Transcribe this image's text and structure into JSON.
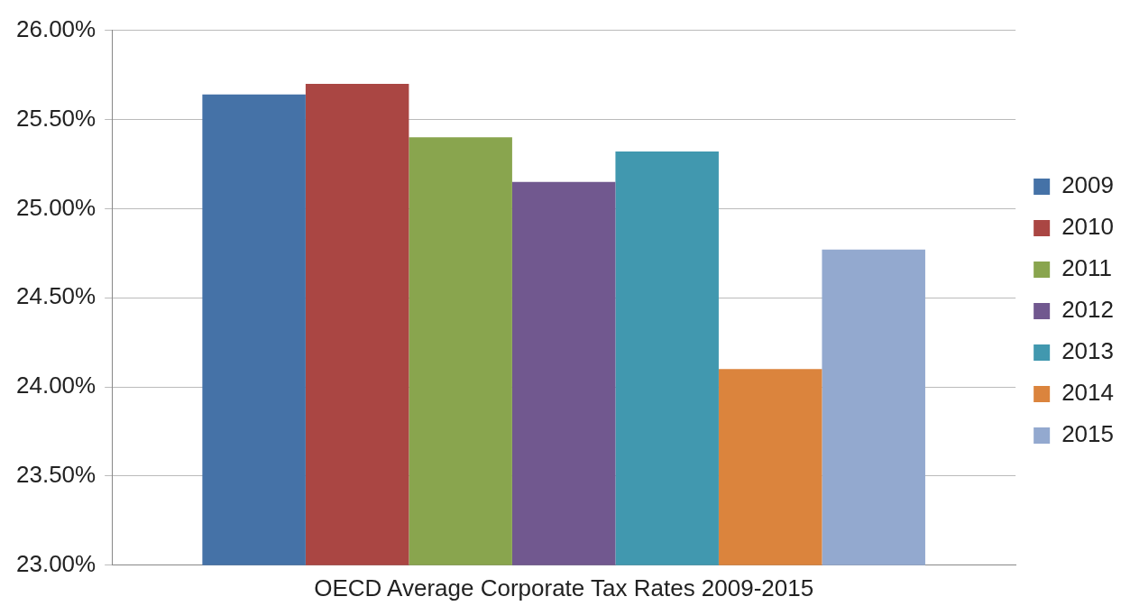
{
  "chart_data": {
    "type": "bar",
    "categories": [
      "OECD Average Corporate Tax Rates 2009-2015"
    ],
    "series": [
      {
        "name": "2009",
        "color": "#4572a7",
        "values": [
          25.64
        ]
      },
      {
        "name": "2010",
        "color": "#aa4643",
        "values": [
          25.7
        ]
      },
      {
        "name": "2011",
        "color": "#89a54e",
        "values": [
          25.4
        ]
      },
      {
        "name": "2012",
        "color": "#71588f",
        "values": [
          25.15
        ]
      },
      {
        "name": "2013",
        "color": "#4198af",
        "values": [
          25.32
        ]
      },
      {
        "name": "2014",
        "color": "#db843d",
        "values": [
          24.1
        ]
      },
      {
        "name": "2015",
        "color": "#93a9cf",
        "values": [
          24.77
        ]
      }
    ],
    "ylim": [
      23,
      26
    ],
    "yticks": [
      {
        "value": 23,
        "label": "23.00%"
      },
      {
        "value": 23.5,
        "label": "23.50%"
      },
      {
        "value": 24,
        "label": "24.00%"
      },
      {
        "value": 24.5,
        "label": "24.50%"
      },
      {
        "value": 25,
        "label": "25.00%"
      },
      {
        "value": 25.5,
        "label": "25.50%"
      },
      {
        "value": 26,
        "label": "26.00%"
      }
    ],
    "grid": "y",
    "legend": "right"
  }
}
